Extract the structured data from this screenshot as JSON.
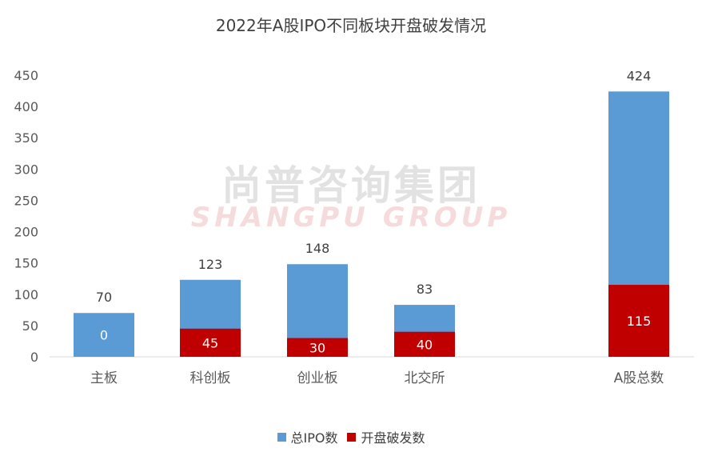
{
  "chart_data": {
    "type": "bar",
    "title": "2022年A股IPO不同板块开盘破发情况",
    "categories": [
      "主板",
      "科创板",
      "创业板",
      "北交所",
      "A股总数"
    ],
    "series": [
      {
        "name": "总IPO数",
        "values": [
          70,
          123,
          148,
          83,
          424
        ],
        "color": "#5B9BD5"
      },
      {
        "name": "开盘破发数",
        "values": [
          0,
          45,
          30,
          40,
          115
        ],
        "color": "#C00000"
      }
    ],
    "ylim": [
      0,
      450
    ],
    "yticks": [
      0,
      50,
      100,
      150,
      200,
      250,
      300,
      350,
      400,
      450
    ],
    "grid": false,
    "legend_position": "bottom",
    "xlabel": "",
    "ylabel": ""
  },
  "watermark": {
    "cn": "尚普咨询集团",
    "en": "SHANGPU GROUP"
  }
}
